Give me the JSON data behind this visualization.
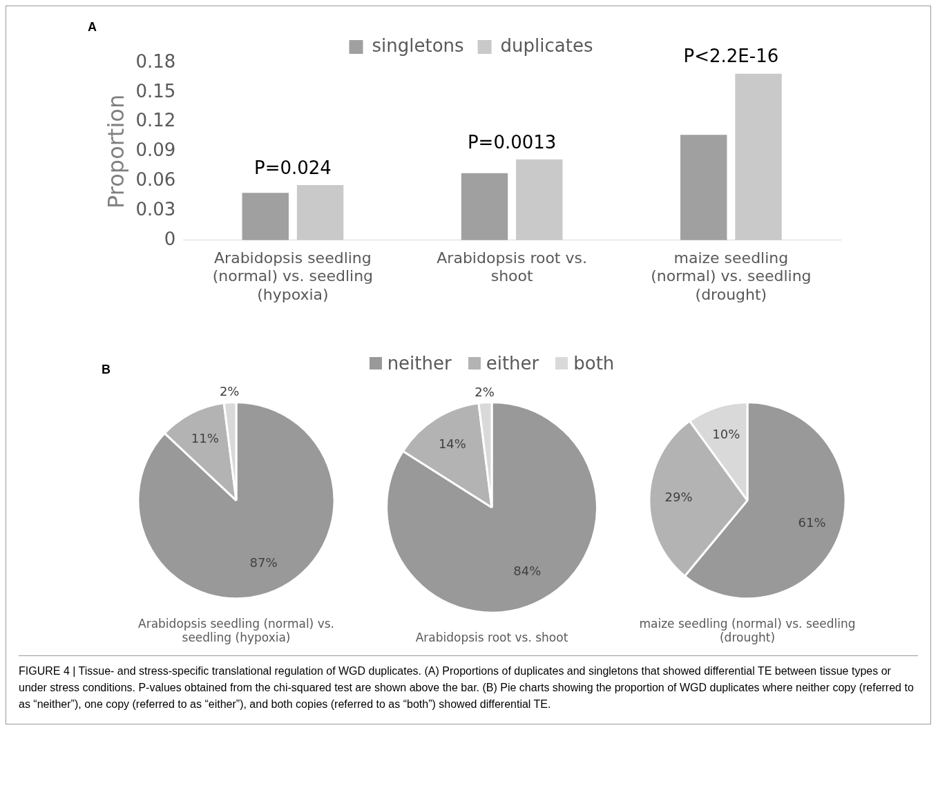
{
  "chart_data": [
    {
      "type": "bar",
      "ylabel": "Proportion",
      "categories": [
        "Arabidopsis seedling (normal) vs. seedling (hypoxia)",
        "Arabidopsis root vs. shoot",
        "maize seedling (normal) vs. seedling (drought)"
      ],
      "series": [
        {
          "name": "singletons",
          "color": "#a0a0a0",
          "values": [
            0.048,
            0.068,
            0.107
          ]
        },
        {
          "name": "duplicates",
          "color": "#c9c9c9",
          "values": [
            0.056,
            0.082,
            0.169
          ]
        }
      ],
      "ylim": [
        0,
        0.18
      ],
      "yticks": [
        0,
        0.03,
        0.06,
        0.09,
        0.12,
        0.15,
        0.18
      ],
      "grid": false,
      "legend": "top",
      "annotations": [
        "A",
        "P=0.024",
        "P=0.0013",
        "P<2.2E-16"
      ]
    },
    {
      "type": "pie",
      "title": "Arabidopsis seedling (normal) vs. seedling (hypoxia)",
      "categories": [
        "neither",
        "either",
        "both"
      ],
      "values": [
        87,
        11,
        2
      ],
      "value_labels": [
        "87%",
        "11%",
        "2%"
      ],
      "colors": [
        "#999999",
        "#b3b3b3",
        "#d9d9d9"
      ],
      "legend": "top",
      "annotations": [
        "B"
      ]
    },
    {
      "type": "pie",
      "title": "Arabidopsis root vs. shoot",
      "categories": [
        null,
        null,
        null
      ],
      "values": [
        84,
        14,
        2
      ],
      "value_labels": [
        "84%",
        "14%",
        "2%"
      ],
      "colors": [
        "#999999",
        "#b3b3b3",
        "#d9d9d9"
      ]
    },
    {
      "type": "pie",
      "title": "maize seedling (normal) vs. seedling (drought)",
      "categories": [
        null,
        null,
        null
      ],
      "values": [
        61,
        29,
        10
      ],
      "value_labels": [
        "61%",
        "29%",
        "10%"
      ],
      "colors": [
        "#999999",
        "#b3b3b3",
        "#d9d9d9"
      ],
      "annotations": [
        "FIGURE 4 | Tissue- and stress-specific translational regulation of WGD duplicates. (A) Proportions of duplicates and singletons that showed differential TE between tissue types or under stress conditions. P-values obtained from the chi-squared test are shown above the bar. (B) Pie charts showing the proportion of WGD duplicates where neither copy (referred to as “neither”), one copy (referred to as “either”), and both copies (referred to as “both”) showed differential TE."
      ]
    }
  ]
}
